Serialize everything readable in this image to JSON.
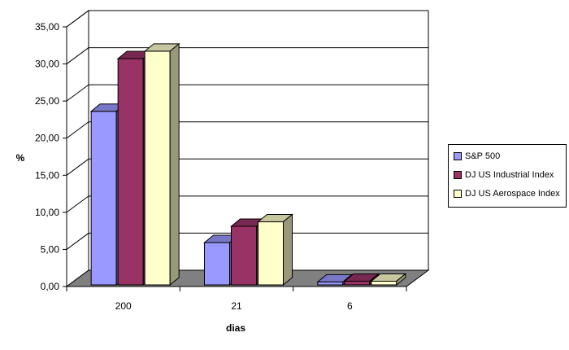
{
  "chart_data": {
    "type": "bar",
    "title": "",
    "xlabel": "dias",
    "ylabel": "%",
    "ylim": [
      0,
      35
    ],
    "yticks": [
      "0,00",
      "5,00",
      "10,00",
      "15,00",
      "20,00",
      "25,00",
      "30,00",
      "35,00"
    ],
    "categories": [
      "200",
      "21",
      "6"
    ],
    "series": [
      {
        "name": "S&P 500",
        "values": [
          23.4,
          5.7,
          0.4
        ],
        "color": "#9999ff"
      },
      {
        "name": "DJ US Industrial Index",
        "values": [
          30.5,
          7.9,
          0.5
        ],
        "color": "#993366"
      },
      {
        "name": "DJ US Aerospace Index",
        "values": [
          31.5,
          8.5,
          0.5
        ],
        "color": "#ffffcc"
      }
    ],
    "grid": true,
    "legend_position": "right"
  }
}
